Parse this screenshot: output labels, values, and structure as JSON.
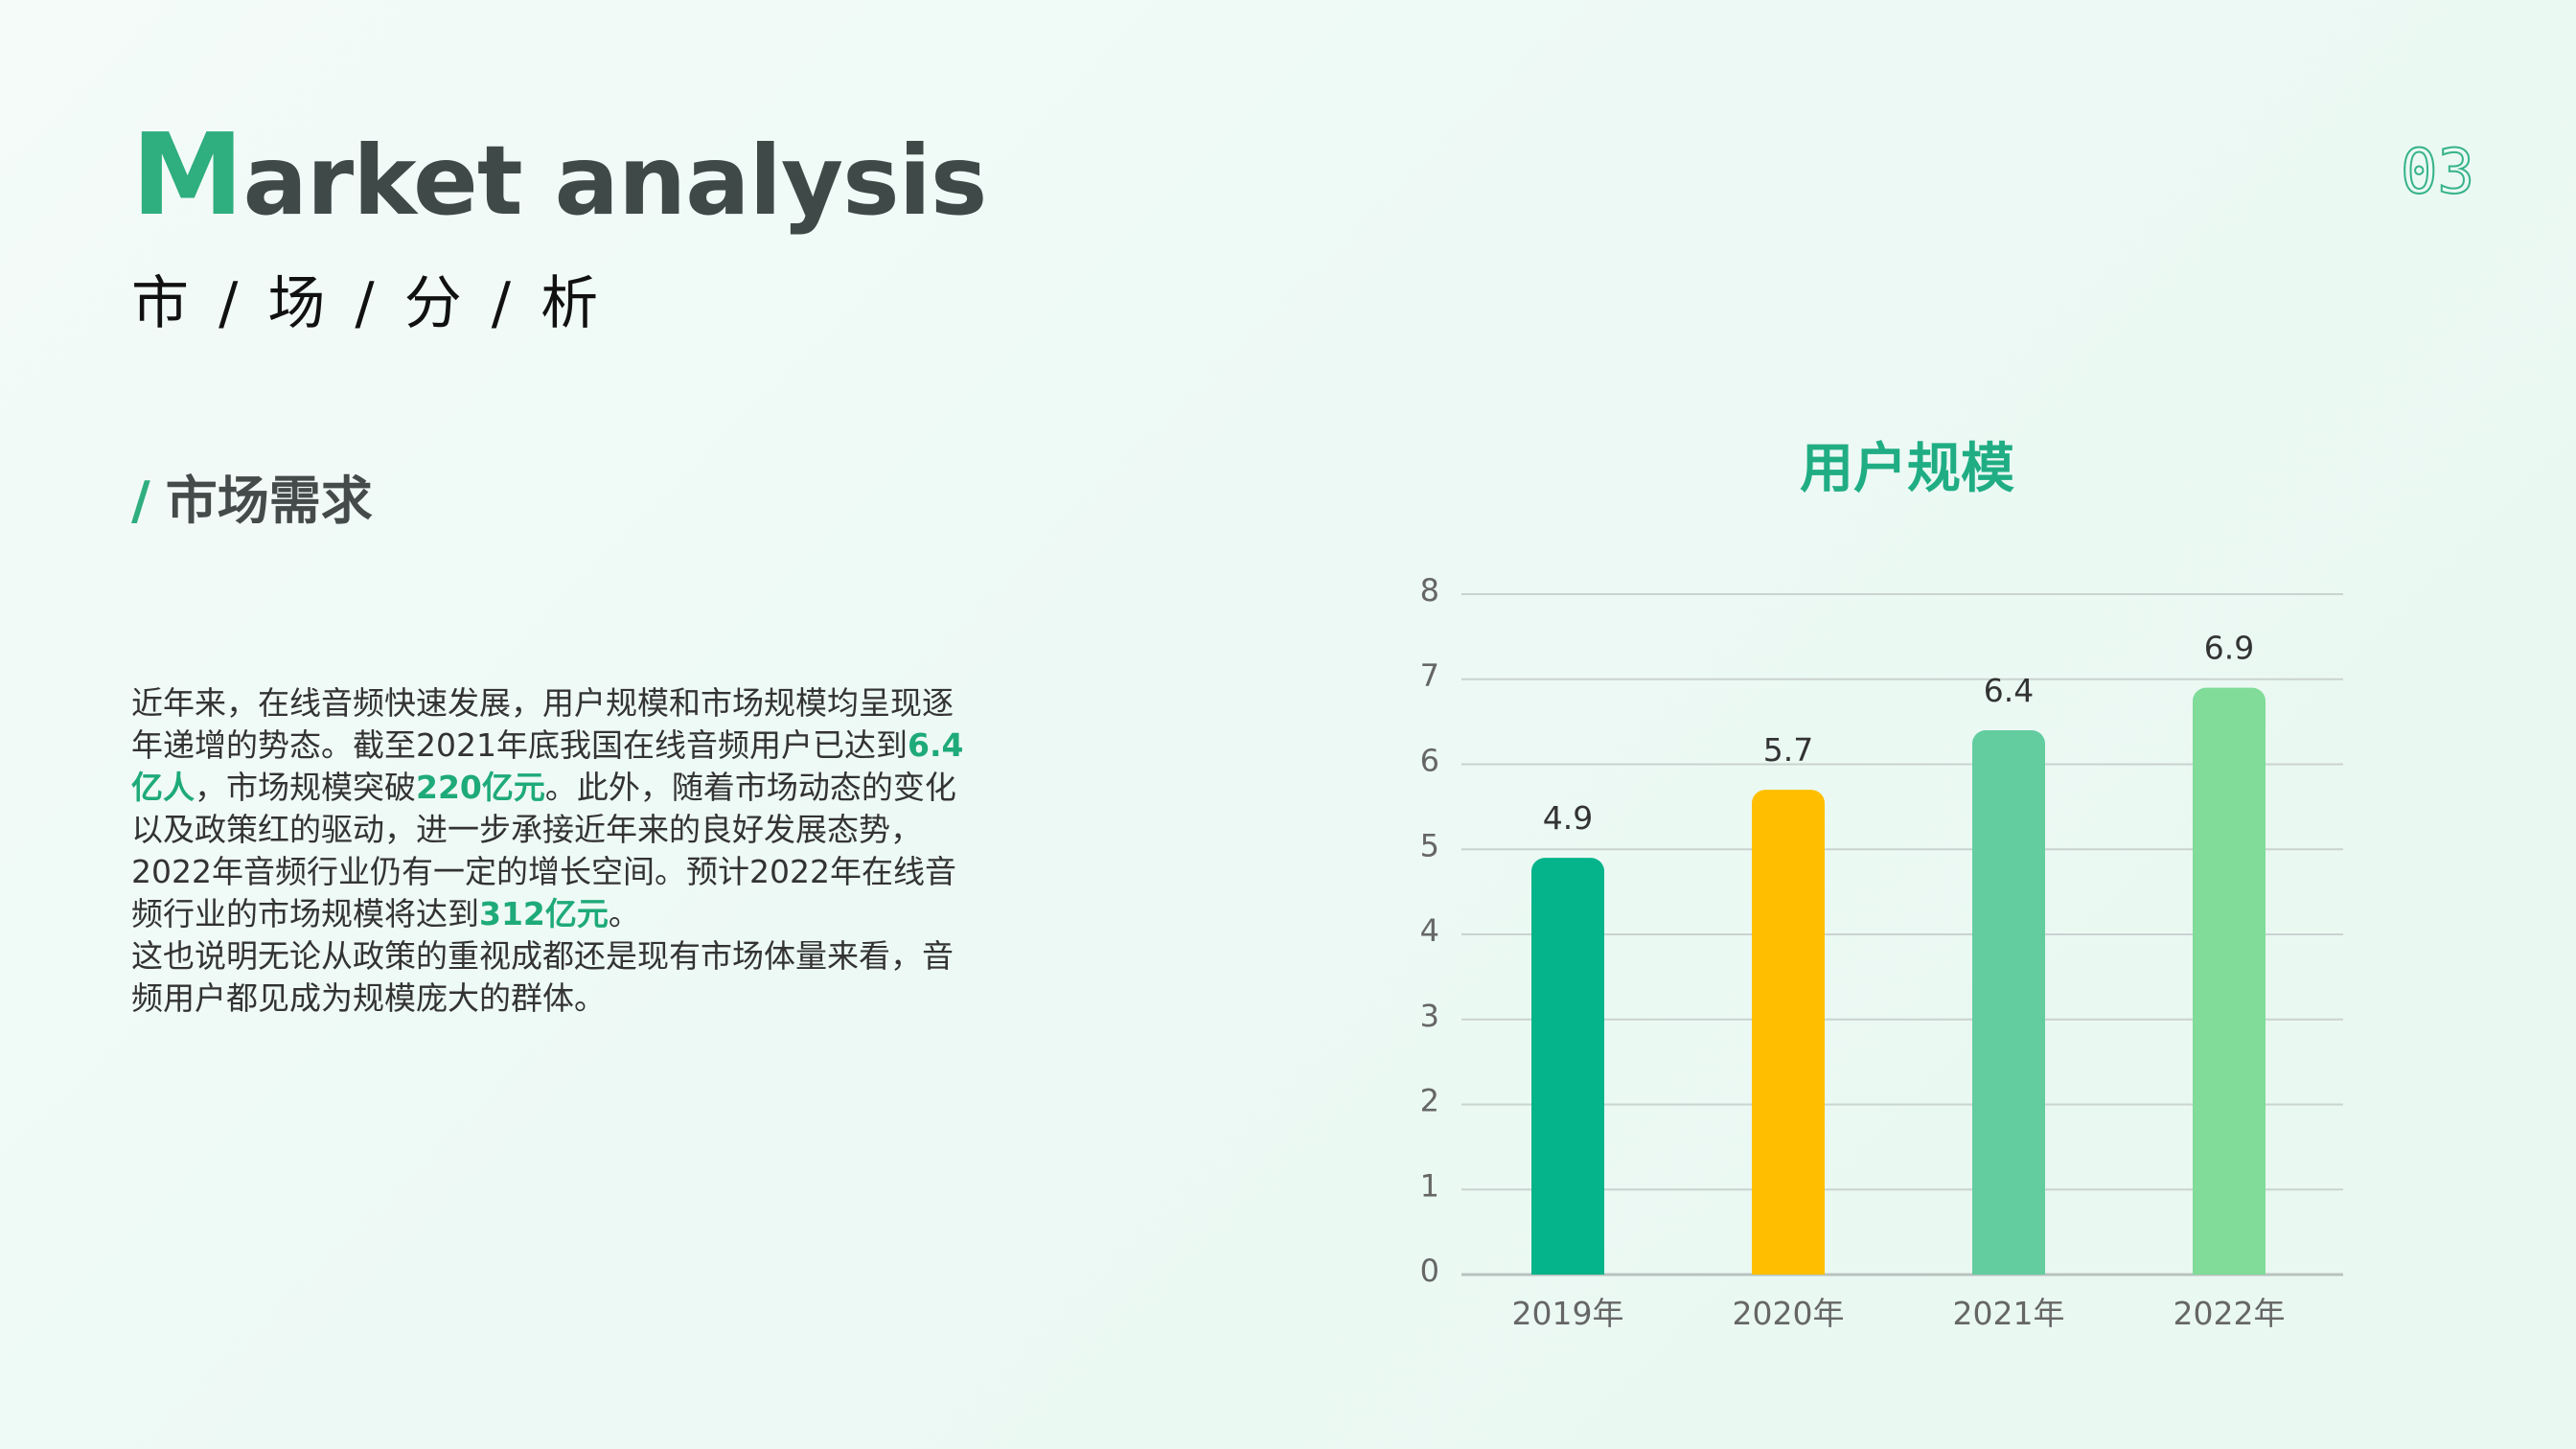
{
  "header": {
    "title_first": "M",
    "title_rest": "arket analysis",
    "subtitle": "市 /  场  / 分 /  析",
    "page_number": "03"
  },
  "section": {
    "slash": "/",
    "title": "市场需求"
  },
  "body": {
    "p1_a": "近年来，在线音频快速发展，用户规模和市场规模均呈现逐年递增的势态。截至2021年底我国在线音频用户已达到",
    "p1_hl1": "6.4亿人",
    "p1_b": "，市场规模突破",
    "p1_hl2": "220亿元",
    "p1_c": "。此外，随着市场动态的变化以及政策红的驱动，进一步承接近年来的良好发展态势，2022年音频行业仍有一定的增长空间。预计2022年在线音频行业的市场规模将达到",
    "p1_hl3": "312亿元",
    "p1_d": "。",
    "p2": "这也说明无论从政策的重视成都还是现有市场体量来看，音频用户都见成为规模庞大的群体。"
  },
  "colors": {
    "accent": "#2fae7f",
    "bar_colors": [
      "#05b48a",
      "#ffbf00",
      "#63cda0",
      "#80dc98"
    ]
  },
  "chart_data": {
    "type": "bar",
    "title": "用户规模",
    "categories": [
      "2019年",
      "2020年",
      "2021年",
      "2022年"
    ],
    "values": [
      4.9,
      5.7,
      6.4,
      6.9
    ],
    "data_labels": [
      "4.9",
      "5.7",
      "6.4",
      "6.9"
    ],
    "yticks": [
      0,
      1,
      2,
      3,
      4,
      5,
      6,
      7,
      8
    ],
    "ylim": [
      0,
      8
    ],
    "grid": true,
    "legend": "none"
  }
}
